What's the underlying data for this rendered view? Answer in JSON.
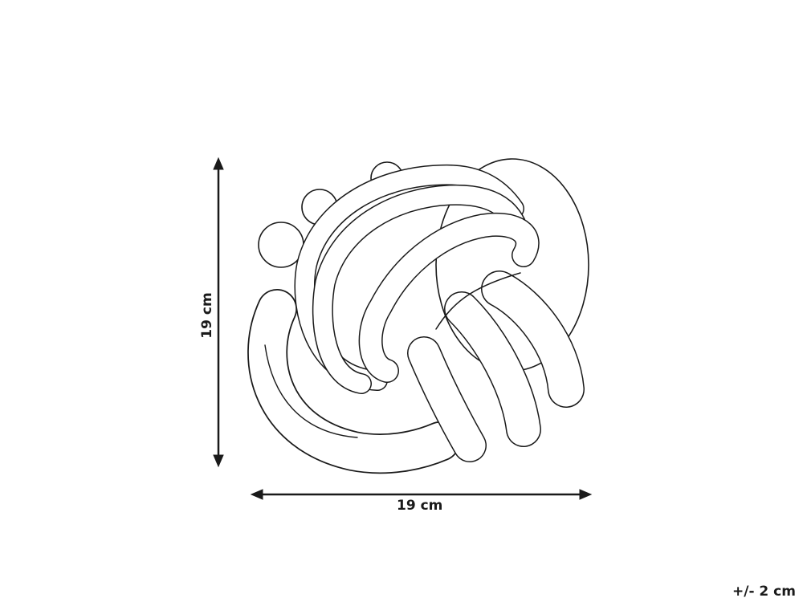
{
  "diagram": {
    "subject_icon": "knot-cushion-line-drawing",
    "height_label": "19 cm",
    "width_label": "19 cm",
    "tolerance_label": "+/- 2 cm",
    "line_color": "#1a1a1a",
    "background": "#ffffff"
  }
}
